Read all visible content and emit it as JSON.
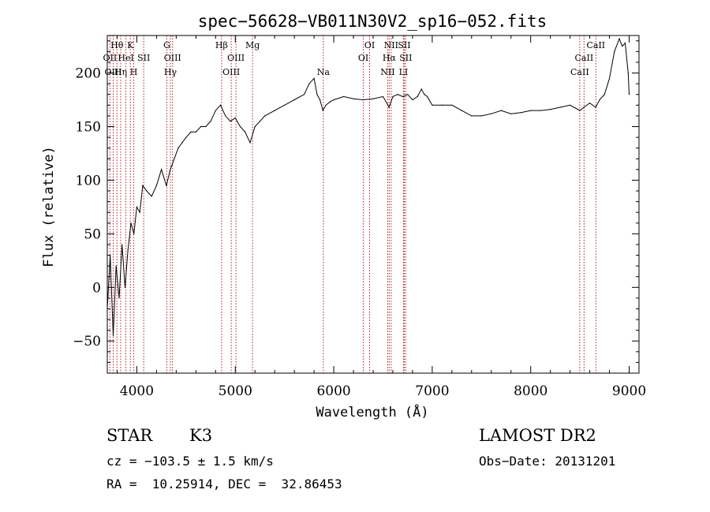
{
  "chart_data": {
    "type": "line",
    "title": "spec−56628−VB011N30V2_sp16−052.fits",
    "xlabel": "Wavelength (Å)",
    "ylabel": "Flux (relative)",
    "xlim": [
      3700,
      9100
    ],
    "ylim": [
      -80,
      235
    ],
    "xticks": [
      4000,
      5000,
      6000,
      7000,
      8000,
      9000
    ],
    "yticks": [
      -50,
      0,
      50,
      100,
      150,
      200
    ],
    "ytick_labels": [
      "−50",
      "0",
      "50",
      "100",
      "150",
      "200"
    ],
    "grid": false,
    "series": [
      {
        "x": [
          3700,
          3730,
          3760,
          3790,
          3820,
          3850,
          3880,
          3910,
          3940,
          3970,
          4000,
          4030,
          4060,
          4100,
          4150,
          4200,
          4250,
          4300,
          4340,
          4380,
          4420,
          4460,
          4500,
          4550,
          4600,
          4650,
          4700,
          4750,
          4800,
          4850,
          4900,
          4950,
          5000,
          5050,
          5100,
          5150,
          5200,
          5250,
          5300,
          5400,
          5500,
          5600,
          5700,
          5750,
          5800,
          5830,
          5860,
          5890,
          5920,
          5960,
          6000,
          6100,
          6200,
          6300,
          6400,
          6500,
          6562,
          6600,
          6650,
          6700,
          6750,
          6800,
          6850,
          6890,
          6920,
          6950,
          7000,
          7100,
          7200,
          7300,
          7400,
          7500,
          7600,
          7700,
          7800,
          7900,
          8000,
          8100,
          8200,
          8300,
          8400,
          8500,
          8540,
          8600,
          8660,
          8700,
          8750,
          8800,
          8850,
          8900,
          8930,
          8960,
          8990,
          9000
        ],
        "values": [
          -20,
          30,
          -45,
          20,
          -10,
          40,
          0,
          35,
          60,
          50,
          75,
          70,
          95,
          90,
          85,
          95,
          110,
          95,
          110,
          120,
          130,
          135,
          140,
          145,
          145,
          150,
          150,
          155,
          165,
          170,
          160,
          155,
          158,
          150,
          145,
          135,
          150,
          155,
          160,
          165,
          170,
          175,
          180,
          190,
          195,
          180,
          175,
          165,
          170,
          173,
          175,
          178,
          176,
          175,
          176,
          178,
          168,
          178,
          180,
          178,
          180,
          175,
          178,
          185,
          180,
          178,
          170,
          170,
          170,
          165,
          160,
          160,
          162,
          165,
          162,
          163,
          165,
          165,
          166,
          168,
          170,
          165,
          168,
          172,
          168,
          175,
          180,
          195,
          220,
          232,
          225,
          228,
          200,
          180
        ]
      }
    ],
    "spectral_lines": [
      {
        "label": "Hθ",
        "wavelength": 3798,
        "row": 0
      },
      {
        "label": "OII",
        "wavelength": 3727,
        "row": 1
      },
      {
        "label": "OIII",
        "wavelength": 3760,
        "row": 2
      },
      {
        "label": "Hη",
        "wavelength": 3836,
        "row": 2
      },
      {
        "label": "HeI",
        "wavelength": 3889,
        "row": 1
      },
      {
        "label": "K",
        "wavelength": 3934,
        "row": 0
      },
      {
        "label": "H",
        "wavelength": 3969,
        "row": 2
      },
      {
        "label": "SII",
        "wavelength": 4070,
        "row": 1
      },
      {
        "label": "G",
        "wavelength": 4305,
        "row": 0
      },
      {
        "label": "OIII",
        "wavelength": 4363,
        "row": 1
      },
      {
        "label": "Hγ",
        "wavelength": 4341,
        "row": 2
      },
      {
        "label": "Hβ",
        "wavelength": 4861,
        "row": 0
      },
      {
        "label": "OIII",
        "wavelength": 4959,
        "row": 2
      },
      {
        "label": "OIII",
        "wavelength": 5007,
        "row": 1
      },
      {
        "label": "Mg",
        "wavelength": 5175,
        "row": 0
      },
      {
        "label": "Na",
        "wavelength": 5894,
        "row": 2
      },
      {
        "label": "OI",
        "wavelength": 6300,
        "row": 1
      },
      {
        "label": "OI",
        "wavelength": 6364,
        "row": 0
      },
      {
        "label": "NII",
        "wavelength": 6548,
        "row": 2
      },
      {
        "label": "Hα",
        "wavelength": 6563,
        "row": 1
      },
      {
        "label": "NII",
        "wavelength": 6583,
        "row": 0
      },
      {
        "label": "SII",
        "wavelength": 6716,
        "row": 0
      },
      {
        "label": "SII",
        "wavelength": 6731,
        "row": 1
      },
      {
        "label": "LI",
        "wavelength": 6708,
        "row": 2
      },
      {
        "label": "CaII",
        "wavelength": 8498,
        "row": 2
      },
      {
        "label": "CaII",
        "wavelength": 8542,
        "row": 1
      },
      {
        "label": "CaII",
        "wavelength": 8662,
        "row": 0
      }
    ],
    "line_color": "#b22222"
  },
  "info": {
    "object_class": "STAR",
    "subclass": "K3",
    "survey": "LAMOST DR2",
    "redshift": "cz = −103.5 ± 1.5 km/s",
    "obs_date": "Obs−Date: 20131201",
    "coords": "RA =  10.25914, DEC =  32.86453"
  }
}
